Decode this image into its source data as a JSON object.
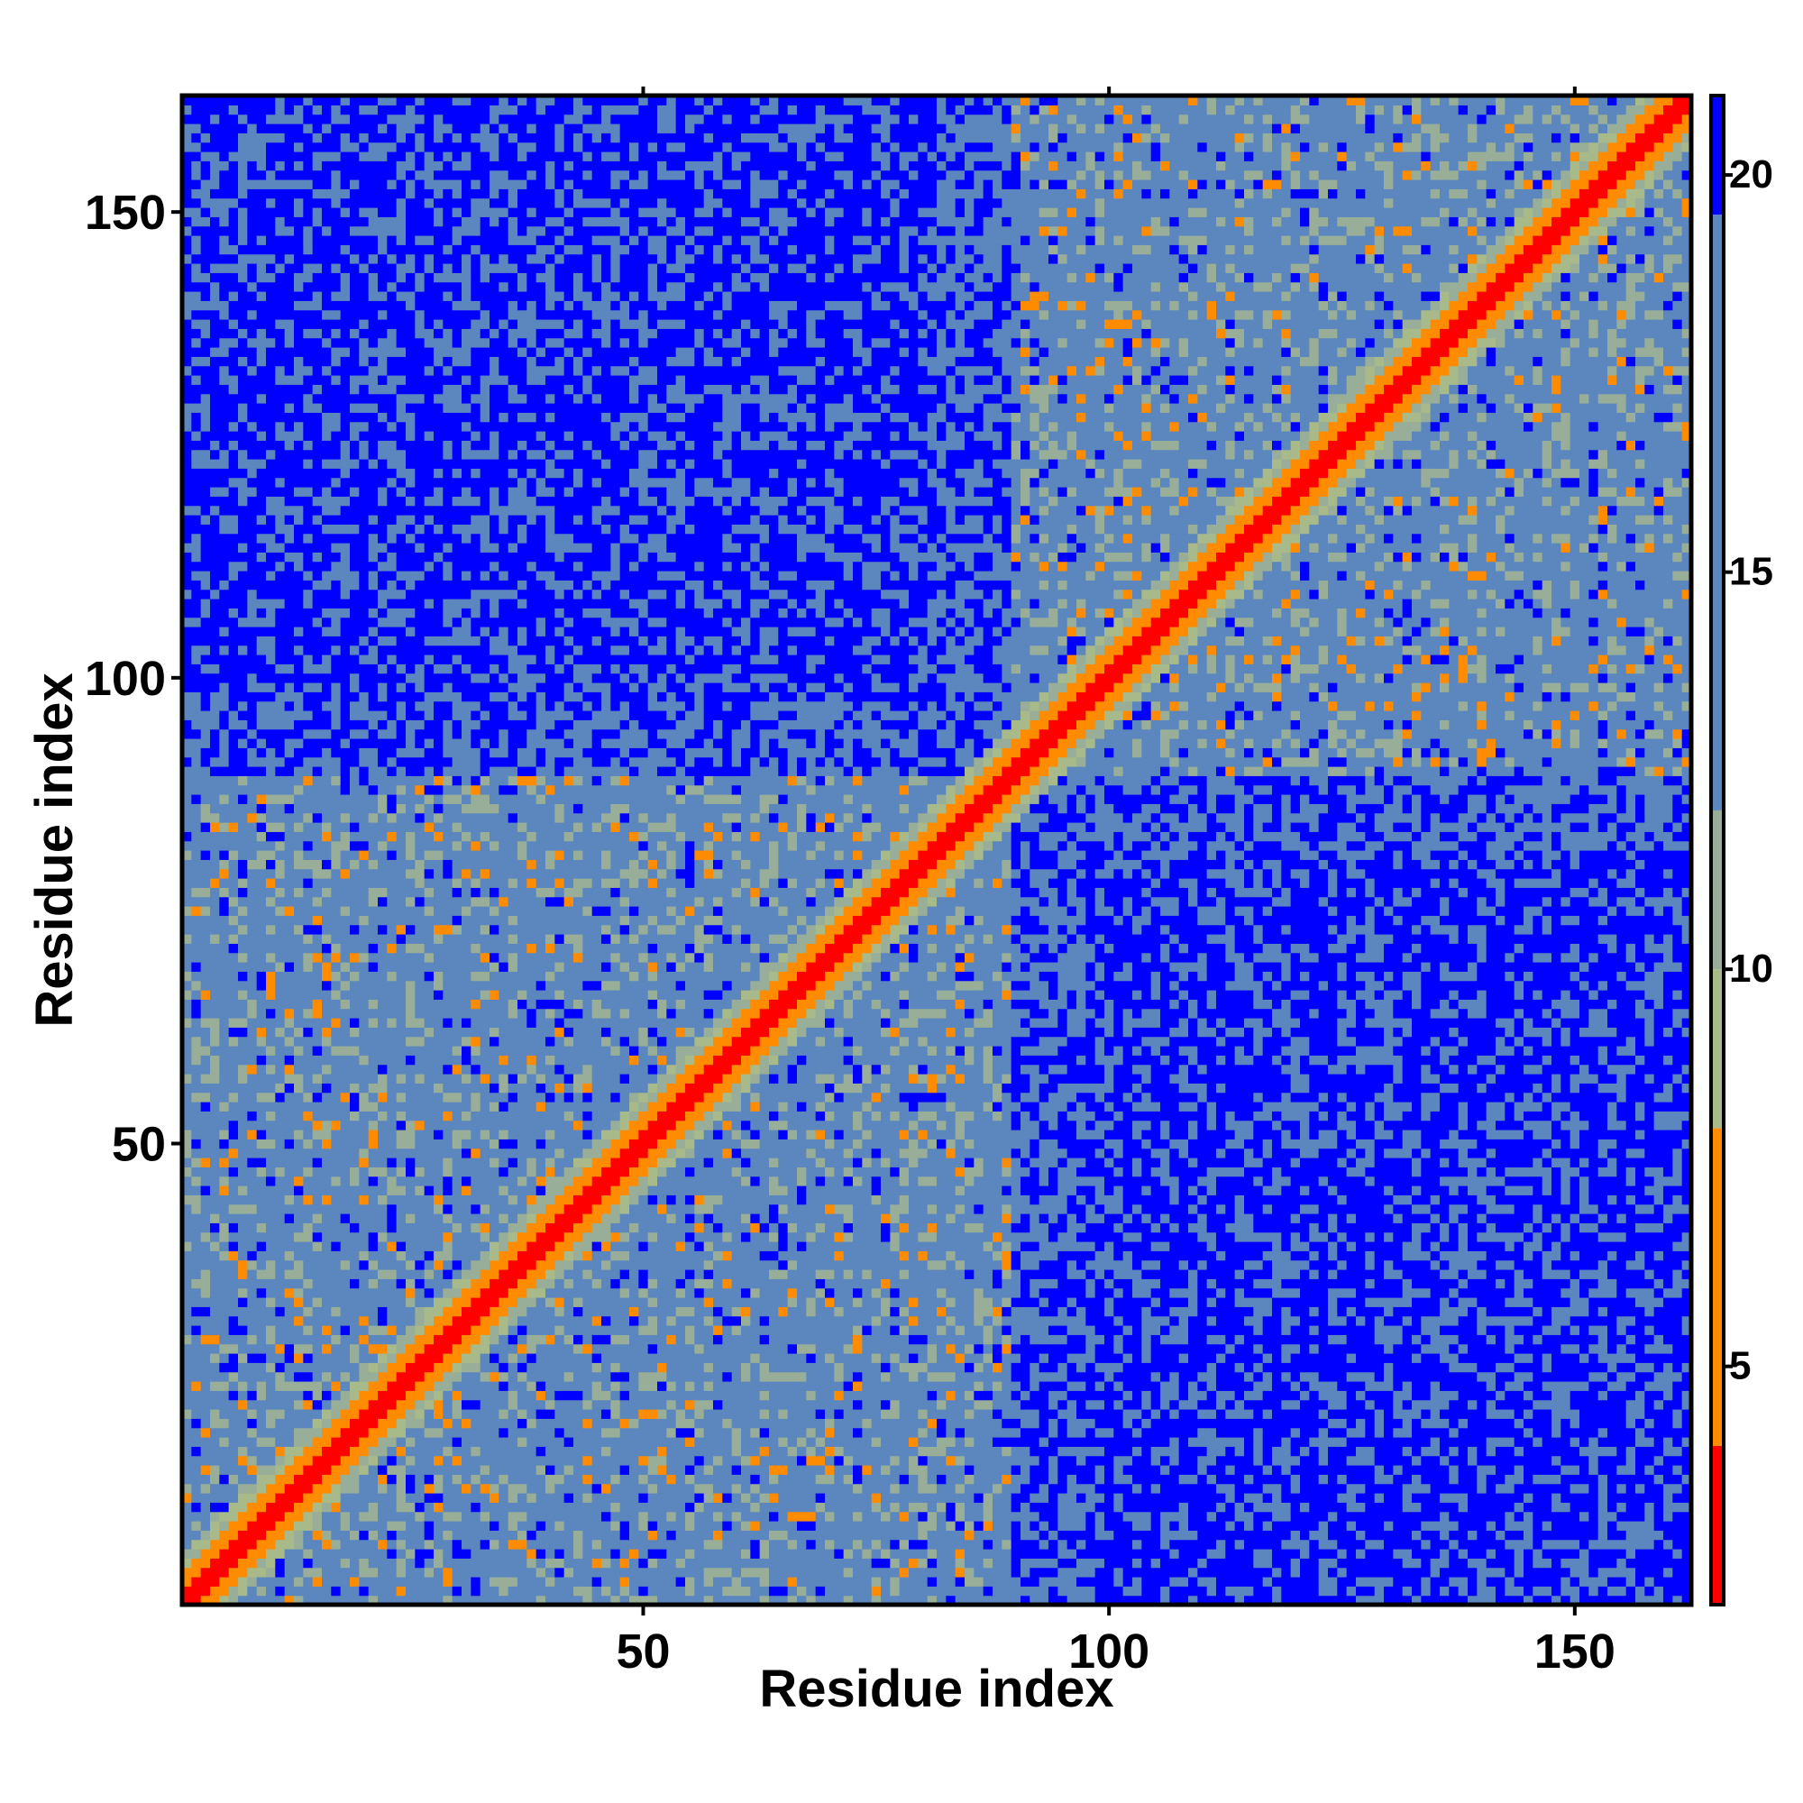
{
  "chart_data": {
    "type": "heatmap",
    "title": "",
    "xlabel": "Residue index",
    "ylabel": "Residue index",
    "n_residues": 162,
    "xlim": [
      0.5,
      162.5
    ],
    "ylim": [
      0.5,
      162.5
    ],
    "x_ticks": [
      50,
      100,
      150
    ],
    "y_ticks": [
      50,
      100,
      150
    ],
    "x_tick_labels": [
      "50",
      "100",
      "150"
    ],
    "y_tick_labels": [
      "50",
      "100",
      "150"
    ],
    "colorbar": {
      "min": 2,
      "max": 21,
      "ticks": [
        5,
        10,
        15,
        20
      ],
      "tick_labels": [
        "5",
        "10",
        "15",
        "20"
      ],
      "segments": [
        {
          "from": 2,
          "to": 4,
          "color": "#ff0000"
        },
        {
          "from": 4,
          "to": 8,
          "color": "#ff8c00"
        },
        {
          "from": 8,
          "to": 10,
          "color": "#a8b98a"
        },
        {
          "from": 10,
          "to": 12,
          "color": "#98ae98"
        },
        {
          "from": 12,
          "to": 19.5,
          "color": "#5b86be"
        },
        {
          "from": 19.5,
          "to": 21,
          "color": "#0000ff"
        }
      ]
    },
    "domains": [
      {
        "name_hidden": true,
        "start": 1,
        "end": 89
      },
      {
        "name_hidden": true,
        "start": 90,
        "end": 162
      }
    ],
    "matrix_description_values": {
      "diagonal_distance": 3.8,
      "near_diagonal_distance": 6,
      "within_domain_typical": 15,
      "between_domain_typical": 20.5
    }
  },
  "colors": {
    "red": "#ff0000",
    "orange": "#ff8c00",
    "khaki": "#a8b98a",
    "steel_blue": "#5b86be",
    "blue": "#0000ff"
  }
}
